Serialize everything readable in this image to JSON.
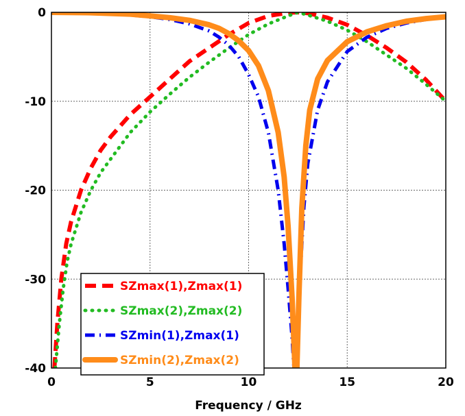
{
  "chart_data": {
    "type": "line",
    "title": "",
    "xlabel": "Frequency / GHz",
    "ylabel": "",
    "xlim": [
      0,
      20
    ],
    "ylim": [
      -40,
      0
    ],
    "xticks": [
      0,
      5,
      10,
      15,
      20
    ],
    "yticks": [
      0,
      -10,
      -20,
      -30,
      -40
    ],
    "grid": true,
    "legend_position": "bottom-left",
    "series": [
      {
        "name": "SZmax(1),Zmax(1)",
        "color": "#ff0000",
        "dash": "dash",
        "x": [
          0.15,
          0.3,
          0.5,
          0.75,
          1.0,
          1.5,
          2.0,
          2.5,
          3.0,
          4.0,
          5.0,
          6.0,
          7.0,
          8.0,
          9.0,
          10.0,
          11.0,
          12.0,
          12.5,
          13.0,
          14.0,
          15.0,
          16.0,
          17.0,
          18.0,
          19.0,
          20.0
        ],
        "y": [
          -40,
          -35,
          -30,
          -26,
          -23.5,
          -20,
          -17.5,
          -15.5,
          -14,
          -11.5,
          -9.5,
          -7.5,
          -5.5,
          -4,
          -2.5,
          -1.2,
          -0.4,
          -0.05,
          0,
          -0.1,
          -0.6,
          -1.4,
          -2.6,
          -4,
          -5.6,
          -7.6,
          -10
        ]
      },
      {
        "name": "SZmax(2),Zmax(2)",
        "color": "#22bb22",
        "dash": "dot",
        "x": [
          0.2,
          0.4,
          0.6,
          0.8,
          1.0,
          1.5,
          2.0,
          2.5,
          3.0,
          4.0,
          5.0,
          6.0,
          7.0,
          8.0,
          9.0,
          10.0,
          11.0,
          12.0,
          12.5,
          13.0,
          14.0,
          15.0,
          16.0,
          17.0,
          18.0,
          19.0,
          20.0
        ],
        "y": [
          -40,
          -35,
          -31,
          -28,
          -26,
          -22.5,
          -20,
          -18,
          -16.5,
          -13.5,
          -11.2,
          -9.2,
          -7.3,
          -5.6,
          -4,
          -2.5,
          -1.3,
          -0.4,
          0,
          -0.3,
          -1,
          -2,
          -3.3,
          -4.8,
          -6.3,
          -8.1,
          -10
        ]
      },
      {
        "name": "SZmin(1),Zmax(1)",
        "color": "#0000ee",
        "dash": "dashdot",
        "x": [
          0,
          2,
          4,
          5,
          6,
          7,
          8,
          8.5,
          9,
          9.5,
          10,
          10.5,
          11,
          11.5,
          11.8,
          12.0,
          12.2,
          12.3,
          12.4,
          12.5,
          12.6,
          12.8,
          13.0,
          13.5,
          14,
          15,
          16,
          17,
          18,
          19,
          20
        ],
        "y": [
          0,
          -0.05,
          -0.3,
          -0.5,
          -0.8,
          -1.3,
          -2.1,
          -2.8,
          -3.7,
          -5,
          -7,
          -9.5,
          -13.5,
          -20,
          -26,
          -31,
          -36.5,
          -40,
          -40,
          -36,
          -30,
          -22,
          -17,
          -11,
          -7.8,
          -4.4,
          -2.8,
          -1.8,
          -1.2,
          -0.8,
          -0.5
        ]
      },
      {
        "name": "SZmin(2),Zmax(2)",
        "color": "#ff8c1a",
        "dash": "solid",
        "x": [
          0,
          2,
          4,
          5,
          6,
          7,
          8,
          8.5,
          9,
          9.5,
          10,
          10.5,
          11,
          11.5,
          11.8,
          12.0,
          12.2,
          12.35,
          12.45,
          12.55,
          12.7,
          12.9,
          13.1,
          13.5,
          14,
          15,
          16,
          17,
          18,
          19,
          20
        ],
        "y": [
          0,
          -0.05,
          -0.2,
          -0.4,
          -0.6,
          -0.9,
          -1.4,
          -1.8,
          -2.4,
          -3.2,
          -4.3,
          -6,
          -8.8,
          -13.5,
          -18.5,
          -24,
          -32,
          -40,
          -40,
          -32,
          -22,
          -15,
          -11,
          -7.5,
          -5.4,
          -3.3,
          -2.2,
          -1.5,
          -1,
          -0.7,
          -0.5
        ]
      }
    ]
  }
}
